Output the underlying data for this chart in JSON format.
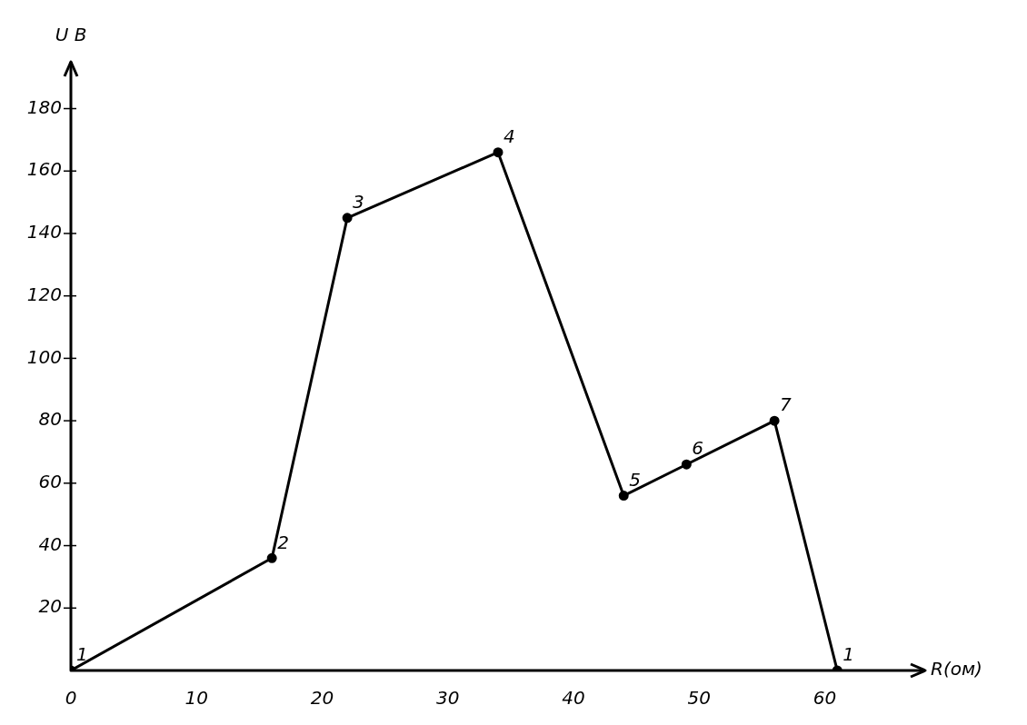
{
  "chart_data": {
    "type": "line",
    "xlabel": "R(ом)",
    "ylabel": "U В",
    "x": [
      0,
      16,
      22,
      34,
      44,
      49,
      56,
      61
    ],
    "series": [
      {
        "color": "#000000",
        "values": [
          0,
          36,
          145,
          166,
          56,
          66,
          80,
          0
        ]
      }
    ],
    "xlim": [
      0,
      68
    ],
    "xticks": [
      0,
      10,
      20,
      30,
      40,
      50,
      60
    ],
    "ylim": [
      0,
      195
    ],
    "yticks": [
      20,
      40,
      60,
      80,
      100,
      120,
      140,
      160,
      180
    ],
    "legend": false,
    "marker": "circle",
    "line_style": "solid",
    "annotations": [
      {
        "text": "1",
        "x": 0,
        "y": 0
      },
      {
        "text": "2",
        "x": 16,
        "y": 36
      },
      {
        "text": "3",
        "x": 22,
        "y": 145
      },
      {
        "text": "4",
        "x": 34,
        "y": 166
      },
      {
        "text": "5",
        "x": 44,
        "y": 56
      },
      {
        "text": "6",
        "x": 49,
        "y": 66
      },
      {
        "text": "7",
        "x": 56,
        "y": 80
      },
      {
        "text": "1",
        "x": 61,
        "y": 0
      }
    ]
  }
}
